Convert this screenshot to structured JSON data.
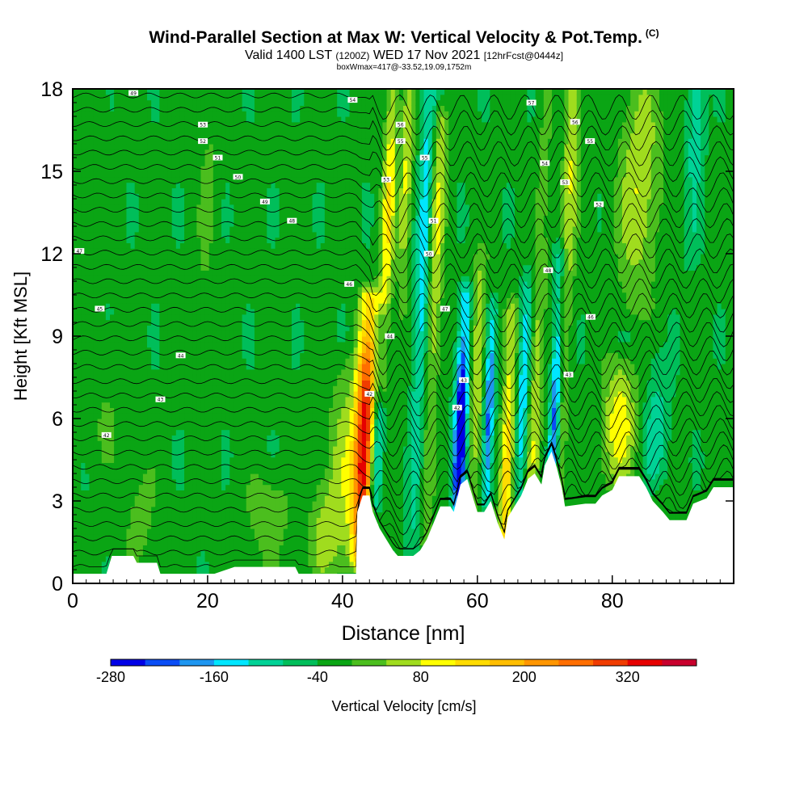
{
  "header": {
    "title": "Wind-Parallel Section at Max W: Vertical Velocity & Pot.Temp.",
    "title_mark": "(C)",
    "valid_prefix": "Valid 1400 LST",
    "valid_z": "(1200Z)",
    "valid_date": "WED 17 Nov 2021",
    "valid_fcst": "[12hrFcst@0444z]",
    "box_info": "boxWmax=417@-33.52,19.09,1752m"
  },
  "chart_data": {
    "type": "heatmap",
    "title": "Wind-Parallel Section at Max W: Vertical Velocity & Pot.Temp.",
    "xlabel": "Distance [nm]",
    "ylabel": "Height [Kft MSL]",
    "xlim": [
      0,
      98
    ],
    "ylim": [
      0,
      18
    ],
    "x_ticks": [
      0,
      20,
      40,
      60,
      80
    ],
    "y_ticks": [
      0,
      3,
      6,
      9,
      12,
      15,
      18
    ],
    "colorbar": {
      "label": "Vertical Velocity [cm/s]",
      "min": -280,
      "max": 400,
      "step": 40,
      "tick_values": [
        -280,
        -160,
        -40,
        80,
        200,
        320
      ],
      "colors": [
        "#0000e6",
        "#0a4df5",
        "#1e96f0",
        "#00e6ff",
        "#00d296",
        "#00be5a",
        "#0aa514",
        "#4bbe1e",
        "#a0dc1e",
        "#ffff00",
        "#ffdc00",
        "#ffbe00",
        "#ff9600",
        "#ff6e00",
        "#f03c00",
        "#e60000",
        "#c8002d"
      ]
    },
    "background_value": -30,
    "terrain_kft": [
      [
        0,
        0.35
      ],
      [
        5,
        0.35
      ],
      [
        5.8,
        1.0
      ],
      [
        9,
        1.0
      ],
      [
        9.5,
        0.75
      ],
      [
        12.5,
        0.75
      ],
      [
        13,
        0.35
      ],
      [
        21,
        0.35
      ],
      [
        24,
        0.6
      ],
      [
        33,
        0.6
      ],
      [
        33.5,
        0.35
      ],
      [
        42,
        0.35
      ],
      [
        42.2,
        2.6
      ],
      [
        43,
        3.2
      ],
      [
        44,
        3.2
      ],
      [
        44.5,
        2.6
      ],
      [
        45.5,
        2.0
      ],
      [
        46.5,
        1.6
      ],
      [
        47.5,
        1.2
      ],
      [
        48.2,
        1.0
      ],
      [
        50.5,
        1.0
      ],
      [
        51.5,
        1.2
      ],
      [
        52.5,
        1.6
      ],
      [
        53.5,
        2.2
      ],
      [
        54.5,
        2.8
      ],
      [
        56,
        2.8
      ],
      [
        56.5,
        2.6
      ],
      [
        57.5,
        3.6
      ],
      [
        58.5,
        3.8
      ],
      [
        59.5,
        3.0
      ],
      [
        60,
        2.6
      ],
      [
        61,
        2.6
      ],
      [
        62,
        3.0
      ],
      [
        63,
        2.2
      ],
      [
        64,
        1.6
      ],
      [
        64.5,
        2.4
      ],
      [
        65.5,
        2.8
      ],
      [
        66.5,
        3.2
      ],
      [
        67.5,
        3.8
      ],
      [
        68.5,
        4.0
      ],
      [
        69.5,
        3.6
      ],
      [
        70,
        4.3
      ],
      [
        71,
        4.8
      ],
      [
        71.8,
        4.2
      ],
      [
        72.5,
        3.5
      ],
      [
        73,
        2.8
      ],
      [
        76,
        2.9
      ],
      [
        77.5,
        2.9
      ],
      [
        78.5,
        3.2
      ],
      [
        80,
        3.4
      ],
      [
        81,
        3.9
      ],
      [
        84,
        3.9
      ],
      [
        85,
        3.5
      ],
      [
        86,
        3.0
      ],
      [
        87.5,
        2.6
      ],
      [
        88.5,
        2.3
      ],
      [
        91,
        2.3
      ],
      [
        92,
        2.9
      ],
      [
        94,
        3.1
      ],
      [
        95,
        3.5
      ],
      [
        98,
        3.5
      ]
    ],
    "features": [
      {
        "x": 43.2,
        "y0": 1.0,
        "y1": 10.4,
        "amp": 380,
        "w": 1.5,
        "peak_kft": 5.0
      },
      {
        "x": 40.0,
        "y0": 0.5,
        "y1": 8.0,
        "amp": 90,
        "w": 2.4,
        "peak_kft": 4.0
      },
      {
        "x": 45.0,
        "y0": 3.0,
        "y1": 9.5,
        "amp": -150,
        "w": 0.9,
        "peak_kft": 4.5
      },
      {
        "x": 46.8,
        "y0": 7.0,
        "y1": 18.0,
        "amp": 150,
        "w": 1.0,
        "peak_kft": 13.5
      },
      {
        "x": 49.5,
        "y0": 10.0,
        "y1": 18.0,
        "amp": 120,
        "w": 0.9,
        "peak_kft": 15.0
      },
      {
        "x": 52.0,
        "y0": 1.0,
        "y1": 18.0,
        "amp": -120,
        "w": 1.0,
        "peak_kft": 12.0
      },
      {
        "x": 54.0,
        "y0": 1.5,
        "y1": 17.0,
        "amp": 110,
        "w": 1.1,
        "peak_kft": 12.5
      },
      {
        "x": 57.5,
        "y0": 3.0,
        "y1": 10.5,
        "amp": -300,
        "w": 0.9,
        "peak_kft": 5.6
      },
      {
        "x": 60.0,
        "y0": 2.6,
        "y1": 12.0,
        "amp": 110,
        "w": 1.0,
        "peak_kft": 8.0
      },
      {
        "x": 61.7,
        "y0": 3.0,
        "y1": 10.0,
        "amp": -190,
        "w": 0.7,
        "peak_kft": 6.0
      },
      {
        "x": 64.3,
        "y0": 1.6,
        "y1": 10.0,
        "amp": 190,
        "w": 1.0,
        "peak_kft": 4.0
      },
      {
        "x": 66.8,
        "y0": 3.0,
        "y1": 11.0,
        "amp": -130,
        "w": 0.8,
        "peak_kft": 7.0
      },
      {
        "x": 68.5,
        "y0": 3.5,
        "y1": 18.0,
        "amp": 100,
        "w": 1.0,
        "peak_kft": 6.0
      },
      {
        "x": 71.5,
        "y0": 4.3,
        "y1": 12.0,
        "amp": -190,
        "w": 0.7,
        "peak_kft": 6.5
      },
      {
        "x": 74.0,
        "y0": 3.0,
        "y1": 18.0,
        "amp": 110,
        "w": 1.2,
        "peak_kft": 16.0
      },
      {
        "x": 81.0,
        "y0": 3.5,
        "y1": 8.0,
        "amp": 140,
        "w": 2.5,
        "peak_kft": 5.8
      },
      {
        "x": 86.5,
        "y0": 4.0,
        "y1": 8.0,
        "amp": -80,
        "w": 1.8,
        "peak_kft": 5.5
      },
      {
        "x": 84.0,
        "y0": 10.0,
        "y1": 18.0,
        "amp": 110,
        "w": 3.0,
        "peak_kft": 14.5
      },
      {
        "x": 92.5,
        "y0": 12.0,
        "y1": 18.0,
        "amp": -90,
        "w": 1.2,
        "peak_kft": 17.0
      },
      {
        "x": 37.0,
        "y0": 0.5,
        "y1": 3.5,
        "amp": 80,
        "w": 2.0,
        "peak_kft": 1.8
      },
      {
        "x": 29.0,
        "y0": 0.5,
        "y1": 4.0,
        "amp": 55,
        "w": 3.5,
        "peak_kft": 2.5
      },
      {
        "x": 10.0,
        "y0": 0.5,
        "y1": 4.5,
        "amp": 45,
        "w": 2.5,
        "peak_kft": 2.5
      },
      {
        "x": 5.0,
        "y0": 4.5,
        "y1": 9.0,
        "amp": 30,
        "w": 3.0,
        "peak_kft": 6.0
      },
      {
        "x": 20.0,
        "y0": 7.0,
        "y1": 18.0,
        "amp": 35,
        "w": 1.5,
        "peak_kft": 14.0
      },
      {
        "x": 3.0,
        "y0": 10.0,
        "y1": 18.0,
        "amp": 30,
        "w": 1.5,
        "peak_kft": 15.0
      }
    ],
    "contour_labels": [
      {
        "x": 9,
        "y": 17.85,
        "text": "49"
      },
      {
        "x": 19.3,
        "y": 16.7,
        "text": "53"
      },
      {
        "x": 19.3,
        "y": 16.1,
        "text": "52"
      },
      {
        "x": 21.5,
        "y": 15.5,
        "text": "51"
      },
      {
        "x": 24.5,
        "y": 14.8,
        "text": "50"
      },
      {
        "x": 28.5,
        "y": 13.9,
        "text": "49"
      },
      {
        "x": 32.5,
        "y": 13.2,
        "text": "48"
      },
      {
        "x": 1,
        "y": 12.1,
        "text": "47"
      },
      {
        "x": 4,
        "y": 10.0,
        "text": "45"
      },
      {
        "x": 16,
        "y": 8.3,
        "text": "44"
      },
      {
        "x": 13,
        "y": 6.7,
        "text": "43"
      },
      {
        "x": 5,
        "y": 5.4,
        "text": "42"
      },
      {
        "x": 41,
        "y": 10.9,
        "text": "46"
      },
      {
        "x": 44,
        "y": 6.9,
        "text": "42"
      },
      {
        "x": 47,
        "y": 9.0,
        "text": "44"
      },
      {
        "x": 41.5,
        "y": 17.6,
        "text": "54"
      },
      {
        "x": 48.6,
        "y": 16.7,
        "text": "56"
      },
      {
        "x": 48.6,
        "y": 16.1,
        "text": "55"
      },
      {
        "x": 46.5,
        "y": 14.7,
        "text": "53"
      },
      {
        "x": 52.2,
        "y": 15.5,
        "text": "55"
      },
      {
        "x": 53.5,
        "y": 13.2,
        "text": "51"
      },
      {
        "x": 52.8,
        "y": 12.0,
        "text": "50"
      },
      {
        "x": 55.2,
        "y": 10.0,
        "text": "47"
      },
      {
        "x": 57,
        "y": 6.4,
        "text": "42"
      },
      {
        "x": 58,
        "y": 7.4,
        "text": "43"
      },
      {
        "x": 68,
        "y": 17.5,
        "text": "57"
      },
      {
        "x": 74.5,
        "y": 16.8,
        "text": "56"
      },
      {
        "x": 76.7,
        "y": 16.1,
        "text": "55"
      },
      {
        "x": 70,
        "y": 15.3,
        "text": "54"
      },
      {
        "x": 73,
        "y": 14.6,
        "text": "53"
      },
      {
        "x": 78,
        "y": 13.8,
        "text": "52"
      },
      {
        "x": 70.5,
        "y": 11.4,
        "text": "48"
      },
      {
        "x": 76.8,
        "y": 9.7,
        "text": "46"
      },
      {
        "x": 73.5,
        "y": 7.6,
        "text": "43"
      }
    ]
  }
}
